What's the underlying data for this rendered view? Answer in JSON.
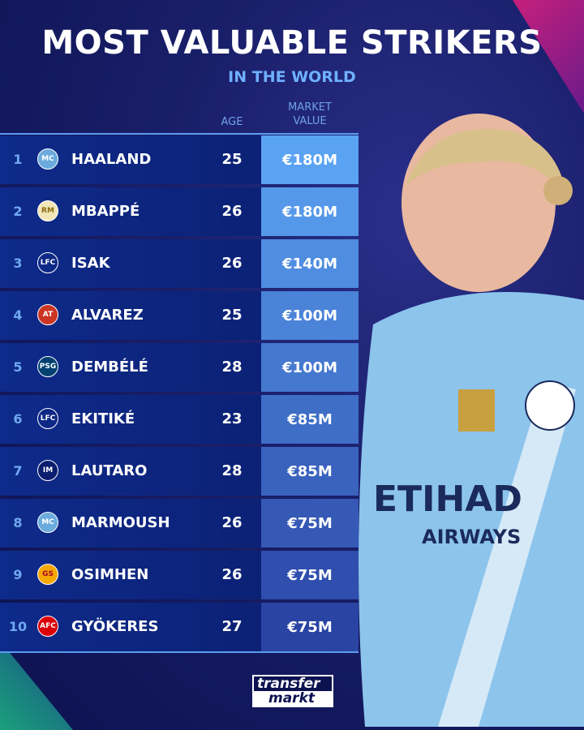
{
  "title": "MOST VALUABLE STRIKERS",
  "subtitle": "IN THE WORLD",
  "headers": {
    "age": "AGE",
    "market_value_1": "MARKET",
    "market_value_2": "VALUE"
  },
  "rows": [
    {
      "rank": "1",
      "club": "Manchester City",
      "name": "HAALAND",
      "age": "25",
      "value": "€180M"
    },
    {
      "rank": "2",
      "club": "Real Madrid",
      "name": "MBAPPÉ",
      "age": "26",
      "value": "€180M"
    },
    {
      "rank": "3",
      "club": "Liverpool",
      "name": "ISAK",
      "age": "26",
      "value": "€140M"
    },
    {
      "rank": "4",
      "club": "Atlético Madrid",
      "name": "ALVAREZ",
      "age": "25",
      "value": "€100M"
    },
    {
      "rank": "5",
      "club": "Paris Saint-Germain",
      "name": "DEMBÉLÉ",
      "age": "28",
      "value": "€100M"
    },
    {
      "rank": "6",
      "club": "Liverpool",
      "name": "EKITIKÉ",
      "age": "23",
      "value": "€85M"
    },
    {
      "rank": "7",
      "club": "Inter",
      "name": "LAUTARO",
      "age": "28",
      "value": "€85M"
    },
    {
      "rank": "8",
      "club": "Manchester City",
      "name": "MARMOUSH",
      "age": "26",
      "value": "€75M"
    },
    {
      "rank": "9",
      "club": "Galatasaray",
      "name": "OSIMHEN",
      "age": "26",
      "value": "€75M"
    },
    {
      "rank": "10",
      "club": "Arsenal",
      "name": "GYÖKERES",
      "age": "27",
      "value": "€75M"
    }
  ],
  "logo": {
    "line1": "transfer",
    "line2": "markt"
  },
  "colors": {
    "value_top": "#5aa2f2",
    "value_bottom": "#2a44a4",
    "accent": "#6fb0ff",
    "background": "#0c1250"
  }
}
